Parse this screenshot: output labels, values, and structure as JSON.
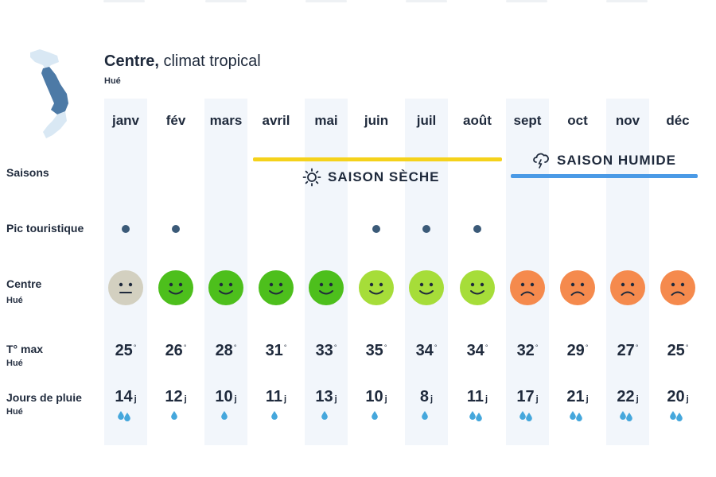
{
  "header": {
    "title_bold": "Centre,",
    "title_rest": " climat tropical",
    "subtitle": "Hué"
  },
  "months": [
    {
      "label": "janv",
      "peak": true,
      "mood": "neutral",
      "temp": "25",
      "rain": "14",
      "drops": 2
    },
    {
      "label": "fév",
      "peak": true,
      "mood": "good",
      "temp": "26",
      "rain": "12",
      "drops": 1
    },
    {
      "label": "mars",
      "peak": false,
      "mood": "good",
      "temp": "28",
      "rain": "10",
      "drops": 1
    },
    {
      "label": "avril",
      "peak": false,
      "mood": "good",
      "temp": "31",
      "rain": "11",
      "drops": 1
    },
    {
      "label": "mai",
      "peak": false,
      "mood": "good",
      "temp": "33",
      "rain": "13",
      "drops": 1
    },
    {
      "label": "juin",
      "peak": true,
      "mood": "ok",
      "temp": "35",
      "rain": "10",
      "drops": 1
    },
    {
      "label": "juil",
      "peak": true,
      "mood": "ok",
      "temp": "34",
      "rain": "8",
      "drops": 1
    },
    {
      "label": "août",
      "peak": true,
      "mood": "ok",
      "temp": "34",
      "rain": "11",
      "drops": 2
    },
    {
      "label": "sept",
      "peak": false,
      "mood": "bad",
      "temp": "32",
      "rain": "17",
      "drops": 2
    },
    {
      "label": "oct",
      "peak": false,
      "mood": "bad",
      "temp": "29",
      "rain": "21",
      "drops": 2
    },
    {
      "label": "nov",
      "peak": false,
      "mood": "bad",
      "temp": "27",
      "rain": "22",
      "drops": 2
    },
    {
      "label": "déc",
      "peak": false,
      "mood": "bad",
      "temp": "25",
      "rain": "20",
      "drops": 2
    }
  ],
  "rows": {
    "seasons": "Saisons",
    "peak": "Pic touristique",
    "center": "Centre",
    "center_sub": "Hué",
    "temp": "T° max",
    "temp_sub": "Hué",
    "rain": "Jours de pluie",
    "rain_sub": "Hué"
  },
  "seasons": {
    "dry": {
      "label": "SAISON SÈCHE",
      "icon": "sun-icon",
      "color": "#f5d21b"
    },
    "wet": {
      "label": "SAISON HUMIDE",
      "icon": "rain-cloud-icon",
      "color": "#4a9ae6"
    }
  },
  "units": {
    "degree": "°",
    "days": "j"
  },
  "colors": {
    "neutral": "#d3d0c0",
    "good": "#4dbf1c",
    "ok": "#a6dd39",
    "bad": "#f58a4d",
    "drop": "#45a7dc",
    "dot": "#3b5a78",
    "band": "#f2f6fb"
  }
}
